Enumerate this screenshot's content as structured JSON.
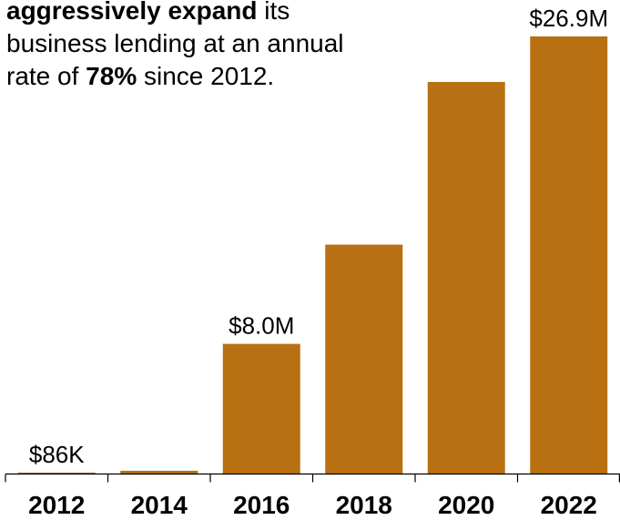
{
  "annotation": {
    "line1_bold": "aggressively expand",
    "line1_rest": " its",
    "line2": "business lending at an annual",
    "line3_pre": "rate of ",
    "line3_bold": "78%",
    "line3_post": " since 2012."
  },
  "colors": {
    "bar": "#B87012",
    "axis": "#000000",
    "text": "#000000"
  },
  "chart_data": {
    "type": "bar",
    "categories": [
      "2012",
      "2014",
      "2016",
      "2018",
      "2020",
      "2022"
    ],
    "values": [
      0.086,
      0.2,
      8.0,
      14.1,
      24.1,
      26.9
    ],
    "value_unit": "$M",
    "data_labels": [
      "$86K",
      "",
      "$8.0M",
      "",
      "",
      "$26.9M"
    ],
    "ylim": [
      0,
      26.9
    ],
    "grid": false,
    "legend": "none"
  }
}
